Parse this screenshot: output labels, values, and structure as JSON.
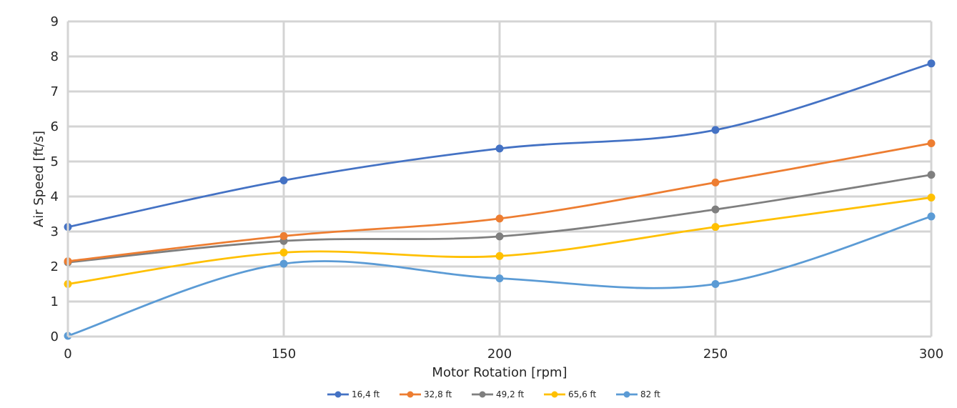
{
  "chart_data": {
    "type": "line",
    "title": "",
    "xlabel": "Motor Rotation [rpm]",
    "ylabel": "Air Speed [ft/s]",
    "categories": [
      "0",
      "150",
      "200",
      "250",
      "300"
    ],
    "ylim": [
      0,
      9
    ],
    "yticks": [
      "0",
      "1",
      "2",
      "3",
      "4",
      "5",
      "6",
      "7",
      "8",
      "9"
    ],
    "grid": true,
    "smooth": true,
    "legend_position": "bottom-center",
    "series": [
      {
        "name": "16,4 ft",
        "color": "#4472C4",
        "values": [
          3.13,
          4.46,
          5.37,
          5.9,
          7.8
        ]
      },
      {
        "name": "32,8 ft",
        "color": "#ED7D31",
        "values": [
          2.15,
          2.87,
          3.37,
          4.4,
          5.52
        ]
      },
      {
        "name": "49,2 ft",
        "color": "#7F7F7F",
        "values": [
          2.12,
          2.73,
          2.86,
          3.63,
          4.62
        ]
      },
      {
        "name": "65,6 ft",
        "color": "#FFC000",
        "values": [
          1.5,
          2.4,
          2.3,
          3.13,
          3.97
        ]
      },
      {
        "name": "82 ft",
        "color": "#5B9BD5",
        "values": [
          0.02,
          2.08,
          1.66,
          1.5,
          3.43
        ]
      }
    ]
  }
}
